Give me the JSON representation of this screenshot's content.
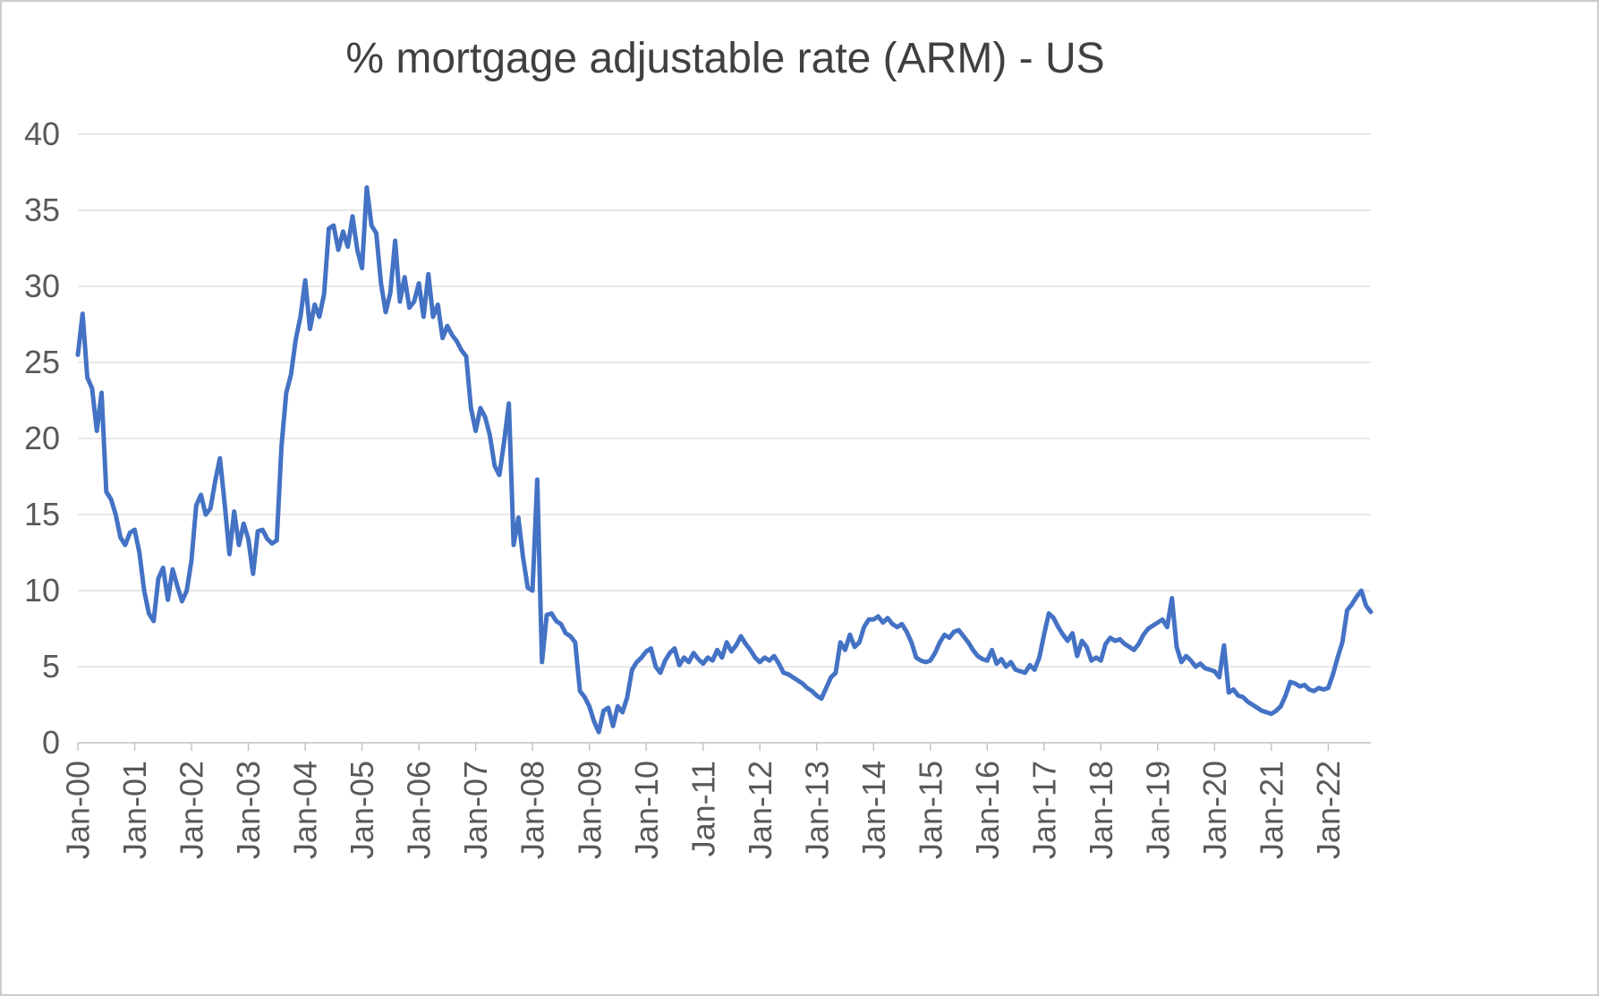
{
  "page": {
    "background": "#ffffff",
    "border_color": "#cccccc"
  },
  "chart_data": {
    "type": "line",
    "title": "% mortgage adjustable rate (ARM) - US",
    "xlabel": "",
    "ylabel": "",
    "legend": "none",
    "grid": "horizontal",
    "ylim": [
      0,
      40
    ],
    "y_ticks": [
      0,
      5,
      10,
      15,
      20,
      25,
      30,
      35,
      40
    ],
    "x_start": "Jan-00",
    "frequency": "monthly",
    "x_tick_interval_months": 12,
    "x_tick_labels": [
      "Jan-00",
      "Jan-01",
      "Jan-02",
      "Jan-03",
      "Jan-04",
      "Jan-05",
      "Jan-06",
      "Jan-07",
      "Jan-08",
      "Jan-09",
      "Jan-10",
      "Jan-11",
      "Jan-12",
      "Jan-13",
      "Jan-14",
      "Jan-15",
      "Jan-16",
      "Jan-17",
      "Jan-18",
      "Jan-19",
      "Jan-20",
      "Jan-21",
      "Jan-22"
    ],
    "series_name": "% mortgage adjustable rate (ARM)",
    "values": [
      25.5,
      28.2,
      24.0,
      23.3,
      20.5,
      23.0,
      16.5,
      16.0,
      15.0,
      13.5,
      13.0,
      13.8,
      14.0,
      12.5,
      10.0,
      8.5,
      8.0,
      10.8,
      11.5,
      9.4,
      11.4,
      10.3,
      9.3,
      10.0,
      12.0,
      15.6,
      16.3,
      15.0,
      15.4,
      17.2,
      18.7,
      15.7,
      12.4,
      15.2,
      13.0,
      14.4,
      13.4,
      11.1,
      13.9,
      14.0,
      13.4,
      13.1,
      13.3,
      19.5,
      23.0,
      24.2,
      26.5,
      28.0,
      30.4,
      27.2,
      28.8,
      28.0,
      29.5,
      33.8,
      34.0,
      32.4,
      33.6,
      32.6,
      34.6,
      32.4,
      31.2,
      36.5,
      34.0,
      33.5,
      30.2,
      28.3,
      29.6,
      33.0,
      29.0,
      30.6,
      28.6,
      29.0,
      30.2,
      28.0,
      30.8,
      28.0,
      28.8,
      26.6,
      27.4,
      26.8,
      26.4,
      25.8,
      25.4,
      22.0,
      20.5,
      22.0,
      21.4,
      20.2,
      18.2,
      17.6,
      19.8,
      22.3,
      13.0,
      14.8,
      12.2,
      10.2,
      10.0,
      17.3,
      5.3,
      8.4,
      8.5,
      8.0,
      7.8,
      7.2,
      7.0,
      6.6,
      3.4,
      3.0,
      2.4,
      1.4,
      0.7,
      2.1,
      2.3,
      1.1,
      2.4,
      2.0,
      3.0,
      4.8,
      5.3,
      5.6,
      6.0,
      6.2,
      5.0,
      4.6,
      5.4,
      5.9,
      6.2,
      5.1,
      5.6,
      5.3,
      5.9,
      5.5,
      5.2,
      5.6,
      5.4,
      6.1,
      5.6,
      6.6,
      6.0,
      6.4,
      7.0,
      6.5,
      6.1,
      5.6,
      5.3,
      5.6,
      5.4,
      5.7,
      5.2,
      4.6,
      4.5,
      4.3,
      4.1,
      3.9,
      3.6,
      3.4,
      3.1,
      2.9,
      3.6,
      4.3,
      4.6,
      6.6,
      6.1,
      7.1,
      6.3,
      6.6,
      7.6,
      8.1,
      8.1,
      8.3,
      7.9,
      8.2,
      7.8,
      7.6,
      7.8,
      7.3,
      6.6,
      5.6,
      5.4,
      5.3,
      5.4,
      5.9,
      6.6,
      7.1,
      6.9,
      7.3,
      7.4,
      7.0,
      6.6,
      6.1,
      5.7,
      5.5,
      5.4,
      6.1,
      5.2,
      5.5,
      5.0,
      5.3,
      4.8,
      4.7,
      4.6,
      5.1,
      4.8,
      5.6,
      7.1,
      8.5,
      8.2,
      7.6,
      7.1,
      6.7,
      7.2,
      5.7,
      6.7,
      6.3,
      5.4,
      5.6,
      5.4,
      6.5,
      6.9,
      6.7,
      6.8,
      6.5,
      6.3,
      6.1,
      6.5,
      7.1,
      7.5,
      7.7,
      7.9,
      8.1,
      7.6,
      9.5,
      6.3,
      5.3,
      5.7,
      5.4,
      5.0,
      5.2,
      4.9,
      4.8,
      4.7,
      4.3,
      6.4,
      3.3,
      3.5,
      3.1,
      3.0,
      2.7,
      2.5,
      2.3,
      2.1,
      2.0,
      1.9,
      2.1,
      2.4,
      3.1,
      4.0,
      3.9,
      3.7,
      3.8,
      3.5,
      3.4,
      3.6,
      3.5,
      3.6,
      4.5,
      5.6,
      6.6,
      8.7,
      9.1,
      9.6,
      10.0,
      9.0,
      8.6
    ],
    "line_color": "#4472C4",
    "grid_color": "#D9D9D9",
    "axis_color": "#BFBFBF",
    "label_color": "#595959",
    "title_color": "#404040"
  }
}
